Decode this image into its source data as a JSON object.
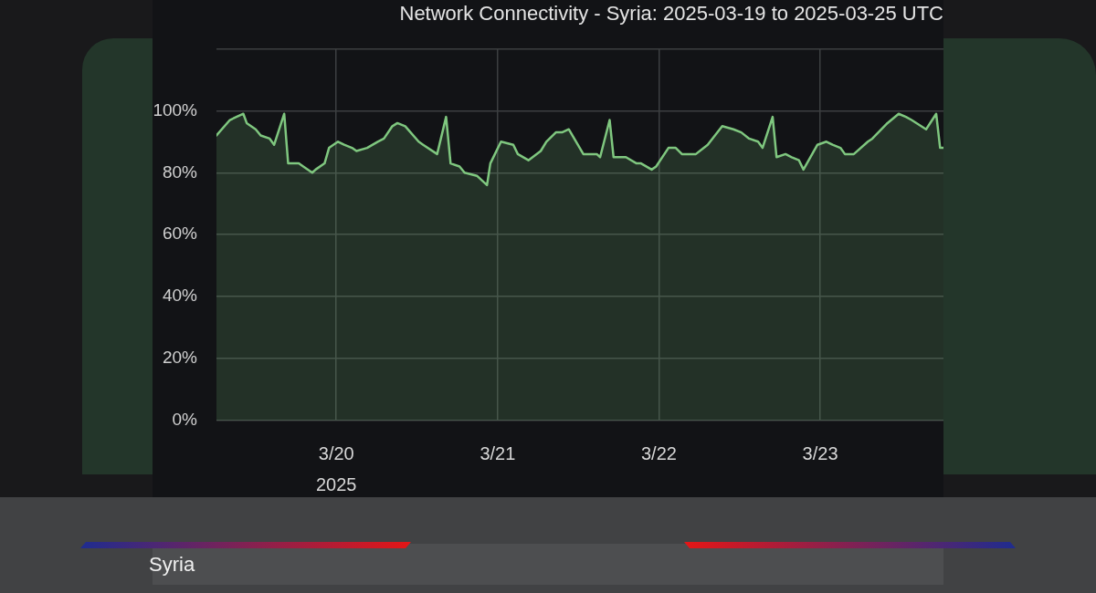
{
  "chart_data": {
    "type": "area",
    "title": "Network Connectivity - Syria: 2025-03-19 to 2025-03-25 UTC",
    "annotations": [
      "Syria"
    ],
    "x": [
      "2025-03-19T06:10",
      "2025-03-19T08:10",
      "2025-03-19T10:10",
      "2025-03-19T10:40",
      "2025-03-19T12:00",
      "2025-03-19T12:45",
      "2025-03-19T14:05",
      "2025-03-19T14:45",
      "2025-03-19T16:15",
      "2025-03-19T16:50",
      "2025-03-19T18:25",
      "2025-03-19T19:05",
      "2025-03-19T20:25",
      "2025-03-19T20:55",
      "2025-03-19T22:15",
      "2025-03-19T22:55",
      "2025-03-20T00:15",
      "2025-03-20T01:10",
      "2025-03-20T02:20",
      "2025-03-20T03:00",
      "2025-03-20T04:35",
      "2025-03-20T06:10",
      "2025-03-20T07:05",
      "2025-03-20T08:20",
      "2025-03-20T09:05",
      "2025-03-20T10:15",
      "2025-03-20T12:15",
      "2025-03-20T12:55",
      "2025-03-20T15:00",
      "2025-03-20T16:20",
      "2025-03-20T17:00",
      "2025-03-20T18:20",
      "2025-03-20T19:05",
      "2025-03-20T20:55",
      "2025-03-20T22:25",
      "2025-03-20T22:55",
      "2025-03-21T00:30",
      "2025-03-21T02:20",
      "2025-03-21T03:00",
      "2025-03-21T04:35",
      "2025-03-21T06:25",
      "2025-03-21T07:15",
      "2025-03-21T08:40",
      "2025-03-21T09:35",
      "2025-03-21T10:35",
      "2025-03-21T12:45",
      "2025-03-21T14:45",
      "2025-03-21T15:15",
      "2025-03-21T16:40",
      "2025-03-21T17:15",
      "2025-03-21T19:05",
      "2025-03-21T20:40",
      "2025-03-21T21:20",
      "2025-03-21T22:55",
      "2025-03-21T23:35",
      "2025-03-22T01:25",
      "2025-03-22T02:30",
      "2025-03-22T03:25",
      "2025-03-22T05:30",
      "2025-03-22T07:15",
      "2025-03-22T09:25",
      "2025-03-22T11:05",
      "2025-03-22T12:15",
      "2025-03-22T13:25",
      "2025-03-22T14:45",
      "2025-03-22T15:25",
      "2025-03-22T16:55",
      "2025-03-22T17:30",
      "2025-03-22T18:50",
      "2025-03-22T19:45",
      "2025-03-22T20:50",
      "2025-03-22T21:30",
      "2025-03-22T23:35",
      "2025-03-23T00:55",
      "2025-03-23T01:50",
      "2025-03-23T03:00",
      "2025-03-23T03:40",
      "2025-03-23T05:00",
      "2025-03-23T07:05",
      "2025-03-23T07:45",
      "2025-03-23T10:00",
      "2025-03-23T11:40",
      "2025-03-23T12:45",
      "2025-03-23T13:35",
      "2025-03-23T15:45",
      "2025-03-23T17:15",
      "2025-03-23T17:50",
      "2025-03-23T18:20"
    ],
    "series": [
      {
        "color": "#7fc77f",
        "values": [
          92,
          97,
          99,
          96,
          94,
          92,
          91,
          89,
          99,
          83,
          83,
          82,
          80,
          81,
          83,
          88,
          90,
          89,
          88,
          87,
          88,
          90,
          91,
          95,
          96,
          95,
          90,
          89,
          86,
          98,
          83,
          82,
          80,
          79,
          76,
          83,
          90,
          89,
          86,
          84,
          87,
          90,
          93,
          93,
          94,
          86,
          86,
          85,
          97,
          85,
          85,
          83,
          83,
          81,
          82,
          88,
          88,
          86,
          86,
          89,
          95,
          94,
          93,
          91,
          90,
          88,
          98,
          85,
          86,
          85,
          84,
          81,
          89,
          90,
          89,
          88,
          86,
          86,
          90,
          91,
          96,
          99,
          98,
          97,
          94,
          99,
          88,
          88
        ]
      }
    ],
    "xlim": [
      "2025-03-19T06:10",
      "2025-03-23T18:20"
    ],
    "xticks": [
      {
        "value": "2025-03-20",
        "label": "3/20\n2025"
      },
      {
        "value": "2025-03-21",
        "label": "3/21"
      },
      {
        "value": "2025-03-22",
        "label": "3/22"
      },
      {
        "value": "2025-03-23",
        "label": "3/23"
      }
    ],
    "ylim": [
      0,
      120
    ],
    "yticks": [
      {
        "value": 0,
        "label": "0%"
      },
      {
        "value": 20,
        "label": "20%"
      },
      {
        "value": 40,
        "label": "40%"
      },
      {
        "value": 60,
        "label": "60%"
      },
      {
        "value": 80,
        "label": "80%"
      },
      {
        "value": 100,
        "label": "100%"
      },
      {
        "value": 120,
        "label": null
      }
    ],
    "grid": true
  }
}
